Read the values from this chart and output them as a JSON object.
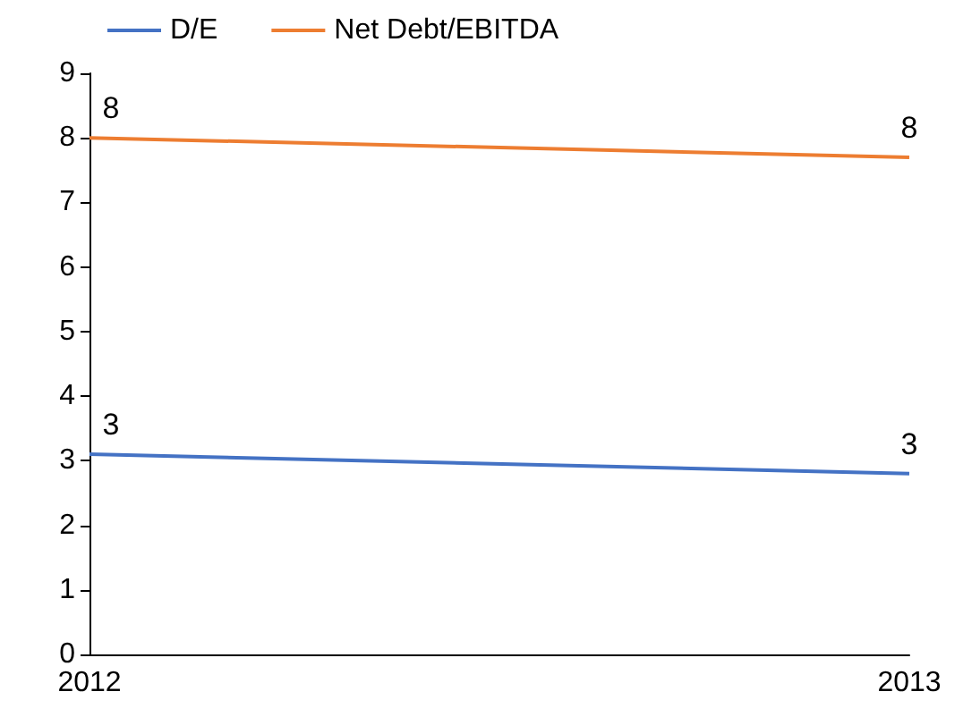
{
  "chart_data": {
    "type": "line",
    "categories": [
      "2012",
      "2013"
    ],
    "series": [
      {
        "name": "D/E",
        "color": "#4472c4",
        "values": [
          3.1,
          2.8
        ],
        "value_labels": [
          "3",
          "3"
        ]
      },
      {
        "name": "Net Debt/EBITDA",
        "color": "#ed7d31",
        "values": [
          8.0,
          7.7
        ],
        "value_labels": [
          "8",
          "8"
        ]
      }
    ],
    "ylim": [
      0,
      9
    ],
    "yticks": [
      0,
      1,
      2,
      3,
      4,
      5,
      6,
      7,
      8,
      9
    ],
    "grid": false,
    "legend": "top left",
    "marker": "none",
    "line_style": "solid"
  }
}
